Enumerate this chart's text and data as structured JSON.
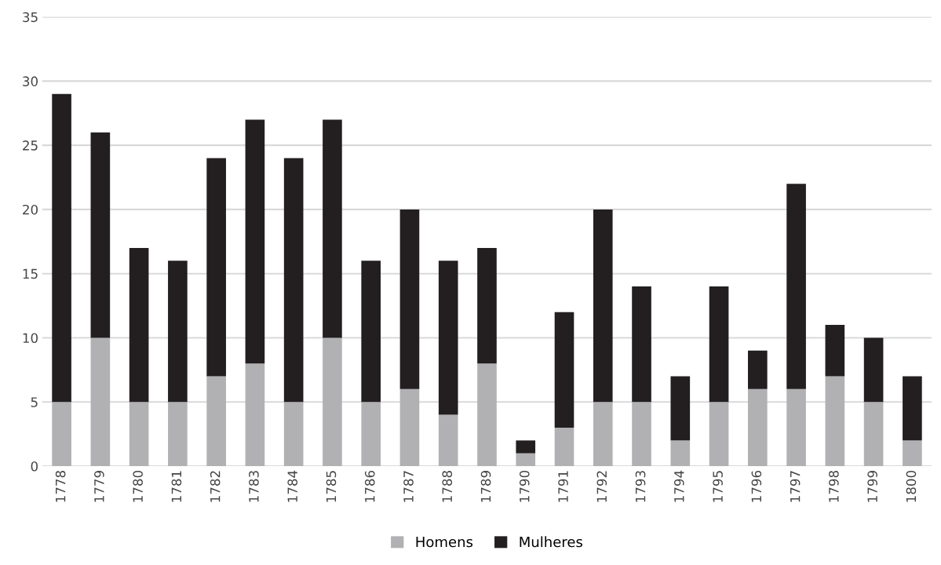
{
  "chart_data": {
    "type": "bar",
    "stacked": true,
    "categories": [
      "1778",
      "1779",
      "1780",
      "1781",
      "1782",
      "1783",
      "1784",
      "1785",
      "1786",
      "1787",
      "1788",
      "1789",
      "1790",
      "1791",
      "1792",
      "1793",
      "1794",
      "1795",
      "1796",
      "1797",
      "1798",
      "1799",
      "1800"
    ],
    "series": [
      {
        "name": "Homens",
        "color": "#b1b1b4",
        "values": [
          5,
          10,
          5,
          5,
          7,
          8,
          5,
          10,
          5,
          6,
          4,
          8,
          1,
          3,
          5,
          5,
          2,
          5,
          6,
          6,
          7,
          5,
          2
        ]
      },
      {
        "name": "Mulheres",
        "color": "#231f20",
        "values": [
          24,
          16,
          12,
          11,
          17,
          19,
          19,
          17,
          11,
          14,
          12,
          9,
          1,
          9,
          15,
          9,
          5,
          9,
          3,
          16,
          4,
          5,
          5
        ]
      }
    ],
    "ylim": [
      0,
      35
    ],
    "yticks": [
      0,
      5,
      10,
      15,
      20,
      25,
      30,
      35
    ],
    "grid": "y",
    "legend": "bottom"
  }
}
